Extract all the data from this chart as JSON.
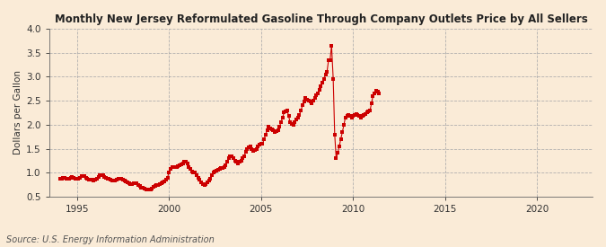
{
  "title": "Monthly New Jersey Reformulated Gasoline Through Company Outlets Price by All Sellers",
  "ylabel": "Dollars per Gallon",
  "source": "Source: U.S. Energy Information Administration",
  "background_color": "#faebd7",
  "marker_color": "#cc0000",
  "xlim_left": 1993.5,
  "xlim_right": 2023.0,
  "ylim_bottom": 0.5,
  "ylim_top": 4.0,
  "xticks": [
    1995,
    2000,
    2005,
    2010,
    2015,
    2020
  ],
  "yticks": [
    0.5,
    1.0,
    1.5,
    2.0,
    2.5,
    3.0,
    3.5,
    4.0
  ],
  "data": [
    [
      1994.08,
      0.87
    ],
    [
      1994.17,
      0.88
    ],
    [
      1994.25,
      0.9
    ],
    [
      1994.33,
      0.89
    ],
    [
      1994.42,
      0.87
    ],
    [
      1994.5,
      0.88
    ],
    [
      1994.58,
      0.88
    ],
    [
      1994.67,
      0.9
    ],
    [
      1994.75,
      0.92
    ],
    [
      1994.83,
      0.9
    ],
    [
      1994.92,
      0.88
    ],
    [
      1995.0,
      0.87
    ],
    [
      1995.08,
      0.87
    ],
    [
      1995.17,
      0.89
    ],
    [
      1995.25,
      0.93
    ],
    [
      1995.33,
      0.93
    ],
    [
      1995.42,
      0.93
    ],
    [
      1995.5,
      0.9
    ],
    [
      1995.58,
      0.87
    ],
    [
      1995.67,
      0.86
    ],
    [
      1995.75,
      0.86
    ],
    [
      1995.83,
      0.85
    ],
    [
      1995.92,
      0.84
    ],
    [
      1996.0,
      0.85
    ],
    [
      1996.08,
      0.87
    ],
    [
      1996.17,
      0.91
    ],
    [
      1996.25,
      0.95
    ],
    [
      1996.33,
      0.94
    ],
    [
      1996.42,
      0.94
    ],
    [
      1996.5,
      0.91
    ],
    [
      1996.58,
      0.89
    ],
    [
      1996.67,
      0.88
    ],
    [
      1996.75,
      0.87
    ],
    [
      1996.83,
      0.85
    ],
    [
      1996.92,
      0.84
    ],
    [
      1997.0,
      0.84
    ],
    [
      1997.08,
      0.84
    ],
    [
      1997.17,
      0.86
    ],
    [
      1997.25,
      0.87
    ],
    [
      1997.33,
      0.87
    ],
    [
      1997.42,
      0.87
    ],
    [
      1997.5,
      0.85
    ],
    [
      1997.58,
      0.84
    ],
    [
      1997.67,
      0.82
    ],
    [
      1997.75,
      0.8
    ],
    [
      1997.83,
      0.78
    ],
    [
      1997.92,
      0.77
    ],
    [
      1998.0,
      0.77
    ],
    [
      1998.08,
      0.78
    ],
    [
      1998.17,
      0.78
    ],
    [
      1998.25,
      0.78
    ],
    [
      1998.33,
      0.75
    ],
    [
      1998.42,
      0.72
    ],
    [
      1998.5,
      0.69
    ],
    [
      1998.58,
      0.68
    ],
    [
      1998.67,
      0.66
    ],
    [
      1998.75,
      0.65
    ],
    [
      1998.83,
      0.64
    ],
    [
      1998.92,
      0.64
    ],
    [
      1999.0,
      0.65
    ],
    [
      1999.08,
      0.67
    ],
    [
      1999.17,
      0.7
    ],
    [
      1999.25,
      0.72
    ],
    [
      1999.33,
      0.74
    ],
    [
      1999.42,
      0.75
    ],
    [
      1999.5,
      0.77
    ],
    [
      1999.58,
      0.78
    ],
    [
      1999.67,
      0.8
    ],
    [
      1999.75,
      0.82
    ],
    [
      1999.83,
      0.86
    ],
    [
      1999.92,
      0.9
    ],
    [
      2000.0,
      1.0
    ],
    [
      2000.08,
      1.08
    ],
    [
      2000.17,
      1.12
    ],
    [
      2000.25,
      1.12
    ],
    [
      2000.33,
      1.12
    ],
    [
      2000.42,
      1.12
    ],
    [
      2000.5,
      1.14
    ],
    [
      2000.58,
      1.15
    ],
    [
      2000.67,
      1.18
    ],
    [
      2000.75,
      1.2
    ],
    [
      2000.83,
      1.22
    ],
    [
      2000.92,
      1.22
    ],
    [
      2001.0,
      1.2
    ],
    [
      2001.08,
      1.12
    ],
    [
      2001.17,
      1.08
    ],
    [
      2001.25,
      1.02
    ],
    [
      2001.33,
      1.0
    ],
    [
      2001.42,
      1.0
    ],
    [
      2001.5,
      0.95
    ],
    [
      2001.58,
      0.9
    ],
    [
      2001.67,
      0.85
    ],
    [
      2001.75,
      0.8
    ],
    [
      2001.83,
      0.77
    ],
    [
      2001.92,
      0.75
    ],
    [
      2002.0,
      0.77
    ],
    [
      2002.08,
      0.8
    ],
    [
      2002.17,
      0.84
    ],
    [
      2002.25,
      0.88
    ],
    [
      2002.33,
      0.95
    ],
    [
      2002.42,
      1.0
    ],
    [
      2002.5,
      1.03
    ],
    [
      2002.58,
      1.05
    ],
    [
      2002.67,
      1.07
    ],
    [
      2002.75,
      1.08
    ],
    [
      2002.83,
      1.09
    ],
    [
      2002.92,
      1.1
    ],
    [
      2003.0,
      1.12
    ],
    [
      2003.08,
      1.15
    ],
    [
      2003.17,
      1.22
    ],
    [
      2003.25,
      1.3
    ],
    [
      2003.33,
      1.35
    ],
    [
      2003.42,
      1.35
    ],
    [
      2003.5,
      1.3
    ],
    [
      2003.58,
      1.25
    ],
    [
      2003.67,
      1.22
    ],
    [
      2003.75,
      1.2
    ],
    [
      2003.83,
      1.22
    ],
    [
      2003.92,
      1.25
    ],
    [
      2004.0,
      1.3
    ],
    [
      2004.08,
      1.35
    ],
    [
      2004.17,
      1.43
    ],
    [
      2004.25,
      1.5
    ],
    [
      2004.33,
      1.53
    ],
    [
      2004.42,
      1.55
    ],
    [
      2004.5,
      1.5
    ],
    [
      2004.58,
      1.45
    ],
    [
      2004.67,
      1.48
    ],
    [
      2004.75,
      1.5
    ],
    [
      2004.83,
      1.54
    ],
    [
      2004.92,
      1.58
    ],
    [
      2005.0,
      1.6
    ],
    [
      2005.08,
      1.6
    ],
    [
      2005.17,
      1.7
    ],
    [
      2005.25,
      1.8
    ],
    [
      2005.33,
      1.88
    ],
    [
      2005.42,
      1.95
    ],
    [
      2005.5,
      1.92
    ],
    [
      2005.58,
      1.9
    ],
    [
      2005.67,
      1.88
    ],
    [
      2005.75,
      1.85
    ],
    [
      2005.83,
      1.86
    ],
    [
      2005.92,
      1.88
    ],
    [
      2006.0,
      1.95
    ],
    [
      2006.08,
      2.05
    ],
    [
      2006.17,
      2.15
    ],
    [
      2006.25,
      2.25
    ],
    [
      2006.33,
      2.28
    ],
    [
      2006.42,
      2.3
    ],
    [
      2006.5,
      2.18
    ],
    [
      2006.58,
      2.05
    ],
    [
      2006.67,
      2.02
    ],
    [
      2006.75,
      2.0
    ],
    [
      2006.83,
      2.05
    ],
    [
      2006.92,
      2.1
    ],
    [
      2007.0,
      2.15
    ],
    [
      2007.08,
      2.2
    ],
    [
      2007.17,
      2.3
    ],
    [
      2007.25,
      2.4
    ],
    [
      2007.33,
      2.48
    ],
    [
      2007.42,
      2.55
    ],
    [
      2007.5,
      2.52
    ],
    [
      2007.58,
      2.5
    ],
    [
      2007.67,
      2.48
    ],
    [
      2007.75,
      2.45
    ],
    [
      2007.83,
      2.5
    ],
    [
      2007.92,
      2.55
    ],
    [
      2008.0,
      2.62
    ],
    [
      2008.08,
      2.65
    ],
    [
      2008.17,
      2.72
    ],
    [
      2008.25,
      2.8
    ],
    [
      2008.33,
      2.88
    ],
    [
      2008.42,
      2.95
    ],
    [
      2008.5,
      3.05
    ],
    [
      2008.58,
      3.1
    ],
    [
      2008.67,
      3.35
    ],
    [
      2008.75,
      3.35
    ],
    [
      2008.83,
      3.65
    ],
    [
      2008.92,
      2.95
    ],
    [
      2009.0,
      1.8
    ],
    [
      2009.08,
      1.3
    ],
    [
      2009.17,
      1.42
    ],
    [
      2009.25,
      1.55
    ],
    [
      2009.33,
      1.7
    ],
    [
      2009.42,
      1.85
    ],
    [
      2009.5,
      2.0
    ],
    [
      2009.58,
      2.15
    ],
    [
      2009.67,
      2.18
    ],
    [
      2009.75,
      2.2
    ],
    [
      2009.83,
      2.18
    ],
    [
      2009.92,
      2.15
    ],
    [
      2010.0,
      2.18
    ],
    [
      2010.08,
      2.2
    ],
    [
      2010.17,
      2.22
    ],
    [
      2010.25,
      2.2
    ],
    [
      2010.33,
      2.18
    ],
    [
      2010.42,
      2.15
    ],
    [
      2010.5,
      2.18
    ],
    [
      2010.58,
      2.2
    ],
    [
      2010.67,
      2.22
    ],
    [
      2010.75,
      2.25
    ],
    [
      2010.83,
      2.28
    ],
    [
      2010.92,
      2.3
    ],
    [
      2011.0,
      2.45
    ],
    [
      2011.08,
      2.6
    ],
    [
      2011.17,
      2.65
    ],
    [
      2011.25,
      2.7
    ],
    [
      2011.33,
      2.68
    ],
    [
      2011.42,
      2.65
    ]
  ]
}
